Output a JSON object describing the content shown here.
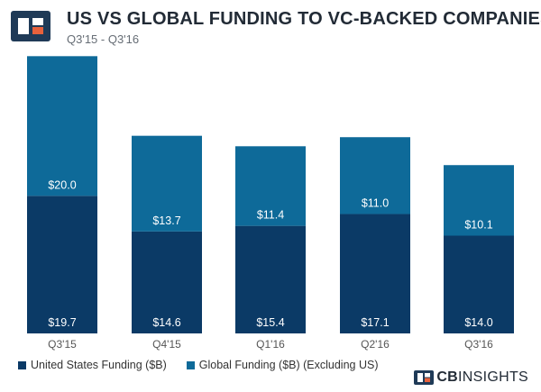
{
  "header": {
    "title": "US VS GLOBAL FUNDING TO VC-BACKED COMPANIES",
    "subtitle": "Q3'15 - Q3'16"
  },
  "brand": {
    "strong": "CB",
    "light": "INSIGHTS",
    "logo_icon": "cb-insights-logo-icon"
  },
  "colors": {
    "us": "#0b3a66",
    "global": "#0e6a99",
    "logo_dark": "#1f3a57",
    "logo_accent": "#e8613c"
  },
  "chart_data": {
    "type": "bar",
    "stacked": true,
    "title": "US VS GLOBAL FUNDING TO VC-BACKED COMPANIES",
    "subtitle": "Q3'15 - Q3'16",
    "categories": [
      "Q3'15",
      "Q4'15",
      "Q1'16",
      "Q2'16",
      "Q3'16"
    ],
    "series": [
      {
        "name": "United States Funding ($B)",
        "values": [
          19.7,
          14.6,
          15.4,
          17.1,
          14.0
        ],
        "labels": [
          "$19.7",
          "$14.6",
          "$15.4",
          "$17.1",
          "$14.0"
        ]
      },
      {
        "name": "Global Funding ($B) (Excluding US)",
        "values": [
          20.0,
          13.7,
          11.4,
          11.0,
          10.1
        ],
        "labels": [
          "$20.0",
          "$13.7",
          "$11.4",
          "$11.0",
          "$10.1"
        ]
      }
    ],
    "ylim": [
      0,
      40
    ],
    "grid": false,
    "legend_position": "bottom-left"
  }
}
